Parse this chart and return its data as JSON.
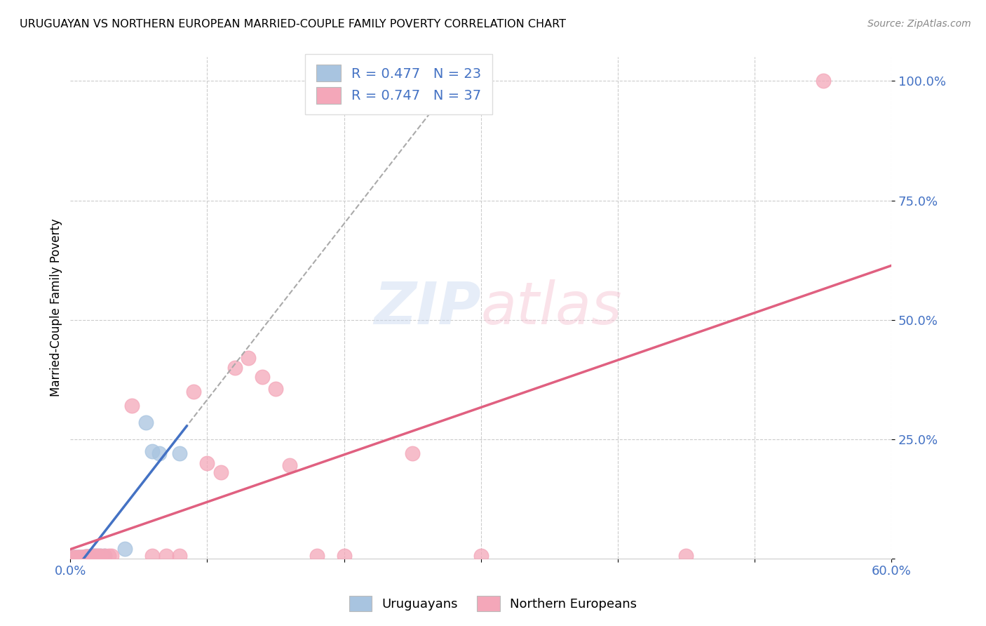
{
  "title": "URUGUAYAN VS NORTHERN EUROPEAN MARRIED-COUPLE FAMILY POVERTY CORRELATION CHART",
  "source": "Source: ZipAtlas.com",
  "ylabel": "Married-Couple Family Poverty",
  "xlim": [
    0.0,
    0.6
  ],
  "ylim": [
    0.0,
    1.05
  ],
  "xticks": [
    0.0,
    0.1,
    0.2,
    0.3,
    0.4,
    0.5,
    0.6
  ],
  "xtick_labels": [
    "0.0%",
    "",
    "",
    "",
    "",
    "",
    "60.0%"
  ],
  "yticks": [
    0.0,
    0.25,
    0.5,
    0.75,
    1.0
  ],
  "ytick_labels": [
    "",
    "25.0%",
    "50.0%",
    "75.0%",
    "100.0%"
  ],
  "uruguayan_R": "0.477",
  "uruguayan_N": "23",
  "northern_european_R": "0.747",
  "northern_european_N": "37",
  "uruguayan_color": "#a8c4e0",
  "northern_european_color": "#f4a7b9",
  "uruguayan_line_color": "#4472c4",
  "northern_european_line_color": "#e06080",
  "watermark_zip": "ZIP",
  "watermark_atlas": "atlas",
  "uruguayan_points": [
    [
      0.002,
      0.002
    ],
    [
      0.003,
      0.002
    ],
    [
      0.004,
      0.002
    ],
    [
      0.005,
      0.002
    ],
    [
      0.006,
      0.002
    ],
    [
      0.007,
      0.003
    ],
    [
      0.008,
      0.003
    ],
    [
      0.009,
      0.003
    ],
    [
      0.01,
      0.003
    ],
    [
      0.011,
      0.004
    ],
    [
      0.012,
      0.004
    ],
    [
      0.013,
      0.004
    ],
    [
      0.015,
      0.005
    ],
    [
      0.016,
      0.005
    ],
    [
      0.018,
      0.005
    ],
    [
      0.02,
      0.005
    ],
    [
      0.022,
      0.006
    ],
    [
      0.025,
      0.006
    ],
    [
      0.04,
      0.02
    ],
    [
      0.055,
      0.285
    ],
    [
      0.06,
      0.225
    ],
    [
      0.065,
      0.22
    ],
    [
      0.08,
      0.22
    ]
  ],
  "northern_european_points": [
    [
      0.002,
      0.002
    ],
    [
      0.003,
      0.002
    ],
    [
      0.005,
      0.002
    ],
    [
      0.006,
      0.002
    ],
    [
      0.007,
      0.003
    ],
    [
      0.008,
      0.003
    ],
    [
      0.009,
      0.003
    ],
    [
      0.01,
      0.003
    ],
    [
      0.011,
      0.004
    ],
    [
      0.012,
      0.004
    ],
    [
      0.013,
      0.004
    ],
    [
      0.015,
      0.004
    ],
    [
      0.016,
      0.004
    ],
    [
      0.018,
      0.005
    ],
    [
      0.02,
      0.005
    ],
    [
      0.022,
      0.005
    ],
    [
      0.025,
      0.005
    ],
    [
      0.028,
      0.005
    ],
    [
      0.03,
      0.005
    ],
    [
      0.045,
      0.32
    ],
    [
      0.06,
      0.005
    ],
    [
      0.07,
      0.005
    ],
    [
      0.08,
      0.005
    ],
    [
      0.09,
      0.35
    ],
    [
      0.1,
      0.2
    ],
    [
      0.11,
      0.18
    ],
    [
      0.12,
      0.4
    ],
    [
      0.13,
      0.42
    ],
    [
      0.14,
      0.38
    ],
    [
      0.15,
      0.355
    ],
    [
      0.16,
      0.195
    ],
    [
      0.18,
      0.005
    ],
    [
      0.2,
      0.005
    ],
    [
      0.25,
      0.22
    ],
    [
      0.3,
      0.005
    ],
    [
      0.45,
      0.005
    ],
    [
      0.55,
      1.0
    ]
  ]
}
